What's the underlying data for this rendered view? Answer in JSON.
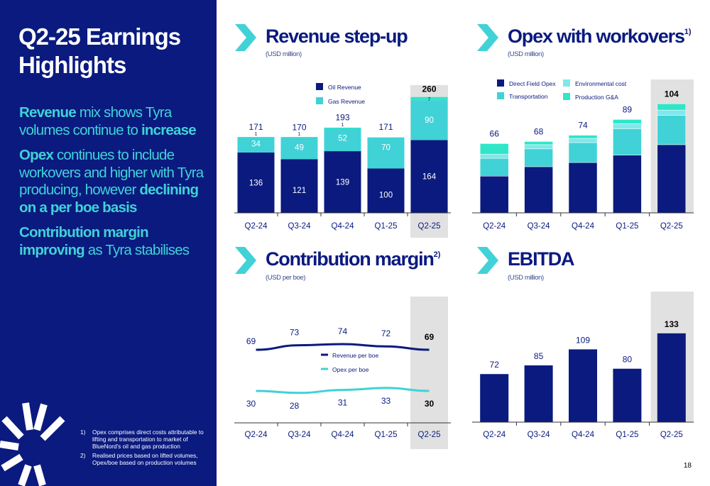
{
  "left": {
    "title_line1": "Q2-25 Earnings",
    "title_line2": "Highlights",
    "bullet1": {
      "bold1": "Revenue",
      "normal1": " mix shows Tyra volumes continue to ",
      "bold2": "increase"
    },
    "bullet2": {
      "bold1": "Opex",
      "normal1": " continues to include workovers and higher with Tyra producing, however ",
      "bold2": "declining on a per boe basis"
    },
    "bullet3": {
      "bold1": "Contribution margin improving",
      "normal1": " as Tyra stabilises"
    },
    "footnotes": [
      {
        "num": "1)",
        "text": "Opex comprises direct costs attributable to lifting and transportation to market of BlueNord's oil and gas production"
      },
      {
        "num": "2)",
        "text": "Realised prices based on lifted volumes, Opex/boe based on production volumes"
      }
    ]
  },
  "page_number": "18",
  "colors": {
    "navy": "#0a1a7f",
    "teal": "#40d2d6",
    "bright_teal": "#2fe6c8",
    "highlight": "#e1e1e1"
  },
  "panels": {
    "revenue": {
      "title": "Revenue step-up",
      "title_sup": "",
      "subtitle": "(USD million)"
    },
    "opex": {
      "title": "Opex with workovers",
      "title_sup": "1)",
      "subtitle": "(USD million)"
    },
    "margin": {
      "title": "Contribution margin",
      "title_sup": "2)",
      "subtitle": "(USD per boe)"
    },
    "ebitda": {
      "title": "EBITDA",
      "title_sup": "",
      "subtitle": "(USD million)"
    }
  },
  "chart_data": [
    {
      "id": "revenue",
      "type": "bar",
      "stacked": true,
      "categories": [
        "Q2-24",
        "Q3-24",
        "Q4-24",
        "Q1-25",
        "Q2-25"
      ],
      "series": [
        {
          "name": "Oil Revenue",
          "color": "#0a1a7f",
          "values": [
            136,
            121,
            139,
            100,
            164
          ]
        },
        {
          "name": "Gas Revenue",
          "color": "#40d2d6",
          "values": [
            34,
            49,
            52,
            70,
            90
          ]
        },
        {
          "name": "",
          "color": "#2fe6c8",
          "values": [
            1,
            1,
            1,
            0,
            7
          ]
        }
      ],
      "segment_labels": [
        [
          "136",
          "34",
          "1"
        ],
        [
          "121",
          "49",
          "1"
        ],
        [
          "139",
          "52",
          "1"
        ],
        [
          "100",
          "70",
          ""
        ],
        [
          "164",
          "90",
          "7"
        ]
      ],
      "totals": [
        171,
        170,
        193,
        171,
        260
      ],
      "highlight": "Q2-25",
      "ylim": [
        0,
        275
      ]
    },
    {
      "id": "opex",
      "type": "bar",
      "stacked": true,
      "categories": [
        "Q2-24",
        "Q3-24",
        "Q4-24",
        "Q1-25",
        "Q2-25"
      ],
      "series": [
        {
          "name": "Direct Field Opex",
          "color": "#0a1a7f",
          "values": [
            35,
            44,
            48,
            55,
            65
          ]
        },
        {
          "name": "Transportation",
          "color": "#40d2d6",
          "values": [
            17,
            17,
            19,
            25,
            28
          ]
        },
        {
          "name": "Environmental cost",
          "color": "#7ee8ea",
          "values": [
            4,
            4,
            4,
            5,
            5
          ]
        },
        {
          "name": "Production G&A",
          "color": "#2fe6c8",
          "values": [
            10,
            3,
            3,
            4,
            6
          ]
        }
      ],
      "totals": [
        66,
        68,
        74,
        89,
        104
      ],
      "highlight": "Q2-25",
      "ylim": [
        0,
        115
      ]
    },
    {
      "id": "margin",
      "type": "line",
      "categories": [
        "Q2-24",
        "Q3-24",
        "Q4-24",
        "Q1-25",
        "Q2-25"
      ],
      "series": [
        {
          "name": "Revenue per boe",
          "color": "#0a1a7f",
          "values": [
            69,
            73,
            74,
            72,
            69
          ]
        },
        {
          "name": "Opex per boe",
          "color": "#40d2d6",
          "values": [
            30,
            28,
            31,
            33,
            30
          ]
        }
      ],
      "highlight": "Q2-25",
      "ylim": [
        0,
        100
      ]
    },
    {
      "id": "ebitda",
      "type": "bar",
      "categories": [
        "Q2-24",
        "Q3-24",
        "Q4-24",
        "Q1-25",
        "Q2-25"
      ],
      "series": [
        {
          "name": "",
          "color": "#0a1a7f",
          "values": [
            72,
            85,
            109,
            80,
            133
          ]
        }
      ],
      "highlight": "Q2-25",
      "ylim": [
        0,
        170
      ]
    }
  ]
}
